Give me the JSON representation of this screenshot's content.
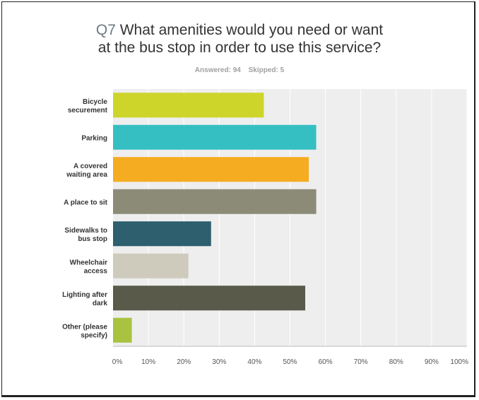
{
  "question": {
    "number": "Q7",
    "text_line1": "What amenities would you need or want",
    "text_line2": "at the bus stop in order to use this service?",
    "answered": "Answered: 94",
    "skipped": "Skipped: 5"
  },
  "chart_data": {
    "type": "bar",
    "orientation": "horizontal",
    "categories": [
      [
        "Bicycle",
        "securement"
      ],
      [
        "Parking"
      ],
      [
        "A covered",
        "waiting area"
      ],
      [
        "A place to sit"
      ],
      [
        "Sidewalks to",
        "bus stop"
      ],
      [
        "Wheelchair",
        "access"
      ],
      [
        "Lighting after",
        "dark"
      ],
      [
        "Other (please",
        "specify)"
      ]
    ],
    "values": [
      42.6,
      57.4,
      55.3,
      57.4,
      27.7,
      21.3,
      54.3,
      5.3
    ],
    "colors": [
      "#cdd52a",
      "#35bfc2",
      "#f5ac20",
      "#8b8b78",
      "#2d5f6e",
      "#cecbbd",
      "#5a5a4b",
      "#a9c23f"
    ],
    "xlim": [
      0,
      100
    ],
    "xticks": [
      "0%",
      "10%",
      "20%",
      "30%",
      "40%",
      "50%",
      "60%",
      "70%",
      "80%",
      "90%",
      "100%"
    ],
    "grid": true,
    "plot_background": "#eeeeee"
  }
}
